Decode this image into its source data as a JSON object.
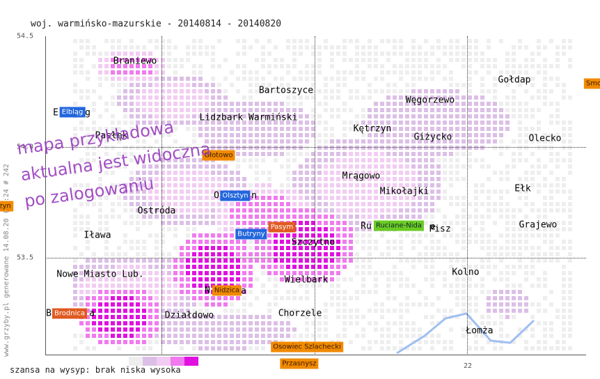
{
  "title": "woj. warmińsko-mazurskie - 20140814 - 20140820",
  "y_ticks": [
    "54.5",
    "54.0",
    "53.5"
  ],
  "x_ticks": [
    "22"
  ],
  "side_text": "www.grzyby.pl generowane 14.08.20 (22:24 # 242",
  "watermark": [
    "mapa przykładowa",
    "aktualna jest widoczna",
    "po zalogowaniu"
  ],
  "legend": {
    "text": "szansa na wysyp: brak niska wysoka"
  },
  "colors": {
    "levels": [
      "#eeeeee",
      "#dcbfe6",
      "#f2ccf2",
      "#f07aee",
      "#e010e0"
    ],
    "river": "#9fbff2"
  },
  "cities": [
    "Braniewo",
    "Bartoszyce",
    "Gołdap",
    "Węgorzewo",
    "Lidzbark Warmiński",
    "Kętrzyn",
    "Giżycko",
    "Olecko",
    "Pasłęk",
    "Mrągowo",
    "Mikołajki",
    "Ełk",
    "Ostróda",
    "Iława",
    "Grajewo",
    "Pisz",
    "Szczytno",
    "Nowe Miasto Lub.",
    "Kolno",
    "Wielbark",
    "Działdowo",
    "Chorzele",
    "Łomża"
  ],
  "tags": [
    "Elbląg",
    "Głotowo",
    "Olsztyn",
    "Butryny",
    "Pasym",
    "Ruciane-Nida",
    "Nidzica",
    "Brodnica",
    "Osowiec Szlachecki",
    "Przasnysz",
    "Smo",
    "zyn"
  ]
}
